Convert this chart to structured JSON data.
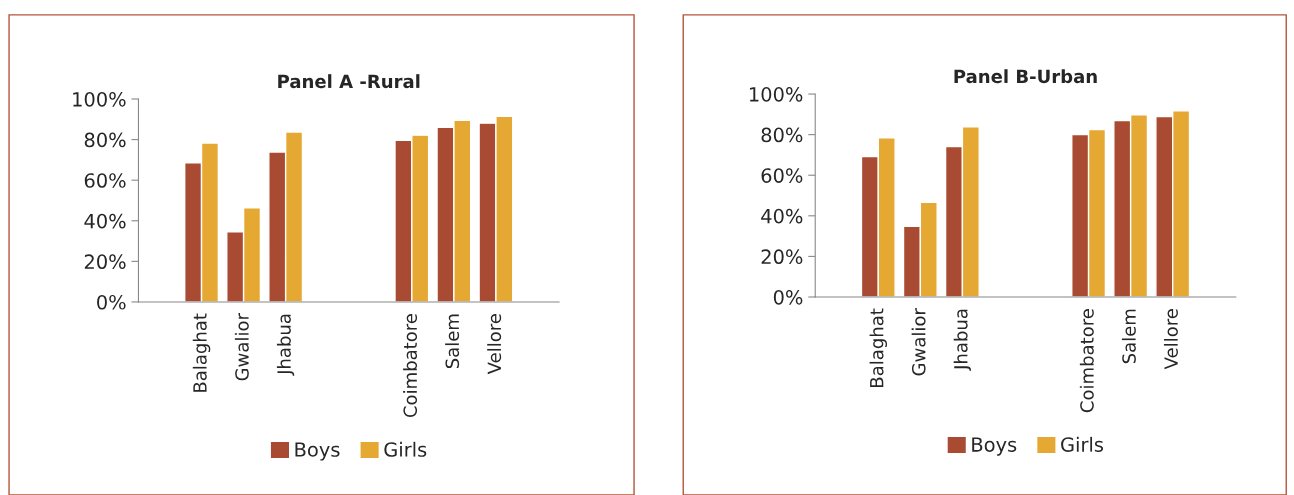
{
  "chart_data": [
    {
      "type": "bar",
      "title": "Panel A -Rural",
      "categories": [
        null,
        "Balaghat",
        "Gwalior",
        "Jhabua",
        null,
        null,
        "Coimbatore",
        "Salem",
        "Vellore",
        null
      ],
      "series": [
        {
          "name": "Boys",
          "color": "#a94a32",
          "values": [
            null,
            68.5,
            34.6,
            73.9,
            null,
            null,
            79.7,
            86.1,
            88.1,
            null
          ]
        },
        {
          "name": "Girls",
          "color": "#e5a832",
          "values": [
            null,
            78.3,
            46.4,
            83.7,
            null,
            null,
            82.2,
            89.5,
            91.5,
            null
          ]
        }
      ],
      "ylim": [
        0,
        100
      ],
      "yticks": [
        {
          "value": 0,
          "label": "0%"
        },
        {
          "value": 20,
          "label": "20%"
        },
        {
          "value": 40,
          "label": "40%"
        },
        {
          "value": 60,
          "label": "60%"
        },
        {
          "value": 80,
          "label": "80%"
        },
        {
          "value": 100,
          "label": "100%"
        }
      ],
      "grid": false,
      "legend": "bottom"
    },
    {
      "type": "bar",
      "title": "Panel B-Urban",
      "categories": [
        null,
        "Balaghat",
        "Gwalior",
        "Jhabua",
        null,
        null,
        "Coimbatore",
        "Salem",
        "Vellore",
        null
      ],
      "series": [
        {
          "name": "Boys",
          "color": "#a94a32",
          "values": [
            null,
            69.2,
            34.8,
            74.1,
            null,
            null,
            80.0,
            86.9,
            88.9,
            null
          ]
        },
        {
          "name": "Girls",
          "color": "#e5a832",
          "values": [
            null,
            78.5,
            46.6,
            83.9,
            null,
            null,
            82.5,
            89.8,
            91.8,
            null
          ]
        }
      ],
      "ylim": [
        0,
        100
      ],
      "yticks": [
        {
          "value": 0,
          "label": "0%"
        },
        {
          "value": 20,
          "label": "20%"
        },
        {
          "value": 40,
          "label": "40%"
        },
        {
          "value": 60,
          "label": "60%"
        },
        {
          "value": 80,
          "label": "80%"
        },
        {
          "value": 100,
          "label": "100%"
        }
      ],
      "grid": false,
      "legend": "bottom"
    }
  ]
}
